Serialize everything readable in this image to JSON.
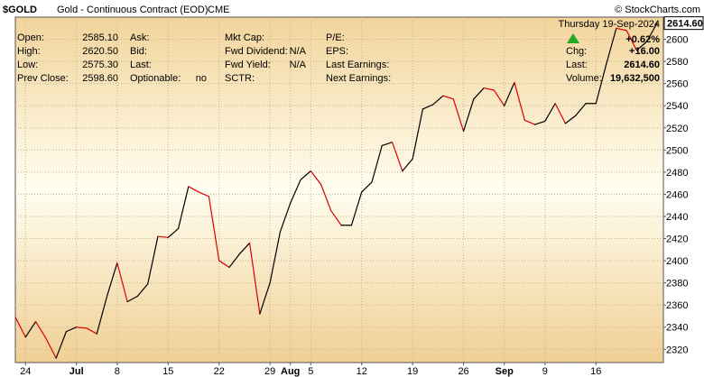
{
  "header": {
    "symbol": "$GOLD",
    "name": "Gold - Continuous Contract (EOD)",
    "exchange": "CME",
    "watermark": "© StockCharts.com",
    "date": "Thursday  19-Sep-2024"
  },
  "quote": {
    "open_label": "Open:",
    "open": "2585.10",
    "high_label": "High:",
    "high": "2620.50",
    "low_label": "Low:",
    "low": "2575.30",
    "prev_close_label": "Prev Close:",
    "prev_close": "2598.60",
    "ask_label": "Ask:",
    "bid_label": "Bid:",
    "last_label": "Last:",
    "optionable_label": "Optionable:",
    "optionable": "no",
    "mkt_cap_label": "Mkt Cap:",
    "fwd_dividend_label": "Fwd Dividend:",
    "fwd_dividend": "N/A",
    "fwd_yield_label": "Fwd Yield:",
    "fwd_yield": "N/A",
    "sctr_label": "SCTR:",
    "pe_label": "P/E:",
    "eps_label": "EPS:",
    "last_earnings_label": "Last Earnings:",
    "next_earnings_label": "Next Earnings:",
    "change_pct": "+0.62%",
    "chg_label": "Chg:",
    "chg": "+16.00",
    "last2_label": "Last:",
    "last": "2614.60",
    "volume_label": "Volume:",
    "volume": "19,632,500",
    "up_color": "#22aa22"
  },
  "chart_data": {
    "type": "line",
    "ylim": [
      2308,
      2620
    ],
    "yticks": [
      2320,
      2340,
      2360,
      2380,
      2400,
      2420,
      2440,
      2460,
      2480,
      2500,
      2520,
      2540,
      2560,
      2580,
      2600
    ],
    "last_value_label": "2614.60",
    "xticks": [
      {
        "label": "24",
        "i": 1,
        "bold": false
      },
      {
        "label": "Jul",
        "i": 6,
        "bold": true
      },
      {
        "label": "8",
        "i": 10,
        "bold": false
      },
      {
        "label": "15",
        "i": 15,
        "bold": false
      },
      {
        "label": "22",
        "i": 20,
        "bold": false
      },
      {
        "label": "29",
        "i": 25,
        "bold": false
      },
      {
        "label": "Aug",
        "i": 27,
        "bold": true
      },
      {
        "label": "5",
        "i": 29,
        "bold": false
      },
      {
        "label": "12",
        "i": 34,
        "bold": false
      },
      {
        "label": "19",
        "i": 39,
        "bold": false
      },
      {
        "label": "26",
        "i": 44,
        "bold": false
      },
      {
        "label": "Sep",
        "i": 48,
        "bold": true
      },
      {
        "label": "9",
        "i": 52,
        "bold": false
      },
      {
        "label": "16",
        "i": 57,
        "bold": false
      }
    ],
    "values": [
      2349,
      2331,
      2345,
      2330,
      2312,
      2336,
      2340,
      2339,
      2334,
      2368,
      2398,
      2363,
      2368,
      2379,
      2422,
      2421,
      2429,
      2467,
      2462,
      2458,
      2400,
      2394,
      2406,
      2416,
      2352,
      2380,
      2426,
      2452,
      2473,
      2481,
      2469,
      2445,
      2432,
      2432,
      2462,
      2471,
      2504,
      2507,
      2481,
      2492,
      2537,
      2541,
      2549,
      2546,
      2517,
      2546,
      2556,
      2554,
      2540,
      2561,
      2527,
      2523,
      2526,
      2542,
      2524,
      2531,
      2542,
      2542,
      2577,
      2610,
      2608,
      2590,
      2598,
      2614.6
    ],
    "up_color": "#000000",
    "down_color": "#dd0000",
    "grid": true,
    "background_gradient": [
      "#f2d49b",
      "#fffef0",
      "#f0cf94"
    ]
  }
}
